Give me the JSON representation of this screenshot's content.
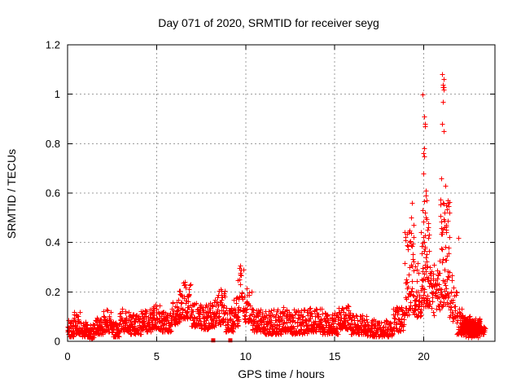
{
  "chart": {
    "title": "Day 071 of 2020, SRMTID for receiver seyg",
    "xlabel": "GPS time / hours",
    "ylabel": "SRMTID / TECUs"
  },
  "chart_data": {
    "type": "scatter",
    "title": "Day 071 of 2020, SRMTID for receiver seyg",
    "xlabel": "GPS time / hours",
    "ylabel": "SRMTID / TECUs",
    "xlim": [
      0,
      24
    ],
    "ylim": [
      0,
      1.2
    ],
    "xticks": [
      0,
      5,
      10,
      15,
      20
    ],
    "xtick_labels": [
      "0",
      "5",
      "10",
      "15",
      "20"
    ],
    "yticks": [
      0,
      0.2,
      0.4,
      0.6,
      0.8,
      1.0,
      1.2
    ],
    "ytick_labels": [
      "0",
      "0.2",
      "0.4",
      "0.6",
      "0.8",
      "1",
      "1.2"
    ],
    "grid": true,
    "grid_style": "dashed-gray",
    "legend": "none",
    "marker": "plus",
    "marker_color": "#ff0000",
    "grid_color": "#9e9e9e",
    "axis_color": "#000000",
    "seed": 42,
    "summary": "Dense noisy band 0.02-0.15 TECUs from 0-19h with bumps near 6.7h (~0.24), 8.5h (~0.22), spike near 9.7h (~0.30); large disturbance 19-21.5h peaking 1.0 at 20h and 1.08 at 21.1h; dense low cluster ~0.05 from 22-23.4h; data ends ~23.4h.",
    "band_segments": [
      [
        0.0,
        0.35,
        0.02,
        0.1,
        35
      ],
      [
        0.35,
        0.75,
        0.03,
        0.12,
        40
      ],
      [
        0.75,
        1.15,
        0.02,
        0.08,
        40
      ],
      [
        1.15,
        1.55,
        0.01,
        0.07,
        40
      ],
      [
        1.55,
        2.0,
        0.03,
        0.1,
        45
      ],
      [
        2.0,
        2.45,
        0.04,
        0.13,
        45
      ],
      [
        2.45,
        2.9,
        0.02,
        0.08,
        45
      ],
      [
        2.9,
        3.5,
        0.04,
        0.14,
        60
      ],
      [
        3.5,
        4.1,
        0.03,
        0.11,
        60
      ],
      [
        4.1,
        4.7,
        0.04,
        0.13,
        60
      ],
      [
        4.7,
        5.2,
        0.05,
        0.15,
        50
      ],
      [
        5.2,
        5.8,
        0.04,
        0.12,
        60
      ],
      [
        5.8,
        6.25,
        0.07,
        0.17,
        45
      ],
      [
        6.25,
        6.95,
        0.09,
        0.24,
        70
      ],
      [
        6.95,
        7.45,
        0.06,
        0.16,
        50
      ],
      [
        7.45,
        7.95,
        0.05,
        0.15,
        50
      ],
      [
        7.95,
        8.35,
        0.06,
        0.18,
        40
      ],
      [
        8.35,
        8.85,
        0.07,
        0.22,
        50
      ],
      [
        8.85,
        9.3,
        0.04,
        0.14,
        45
      ],
      [
        9.3,
        9.6,
        0.06,
        0.18,
        30
      ],
      [
        9.55,
        9.9,
        0.12,
        0.3,
        20
      ],
      [
        9.9,
        10.35,
        0.08,
        0.22,
        40
      ],
      [
        10.35,
        11.0,
        0.04,
        0.13,
        65
      ],
      [
        11.0,
        12.0,
        0.03,
        0.13,
        95
      ],
      [
        12.0,
        12.5,
        0.04,
        0.14,
        48
      ],
      [
        12.5,
        13.5,
        0.03,
        0.13,
        95
      ],
      [
        13.5,
        14.3,
        0.04,
        0.14,
        75
      ],
      [
        14.3,
        15.2,
        0.03,
        0.12,
        85
      ],
      [
        15.2,
        15.9,
        0.05,
        0.15,
        65
      ],
      [
        15.9,
        16.8,
        0.03,
        0.11,
        80
      ],
      [
        16.8,
        18.25,
        0.02,
        0.09,
        115
      ],
      [
        18.25,
        18.9,
        0.04,
        0.14,
        55
      ],
      [
        18.9,
        19.45,
        0.1,
        0.45,
        60
      ],
      [
        19.45,
        19.85,
        0.1,
        0.32,
        42
      ],
      [
        19.85,
        20.3,
        0.14,
        0.6,
        70
      ],
      [
        20.3,
        20.9,
        0.1,
        0.32,
        55,
        1
      ],
      [
        20.9,
        21.45,
        0.14,
        0.58,
        75
      ],
      [
        21.45,
        21.85,
        0.08,
        0.28,
        30
      ],
      [
        21.85,
        22.15,
        0.03,
        0.14,
        30
      ],
      [
        22.1,
        22.6,
        0.01,
        0.11,
        150,
        1
      ],
      [
        22.55,
        23.15,
        0.01,
        0.1,
        150,
        1
      ],
      [
        23.1,
        23.45,
        0.02,
        0.08,
        25,
        1
      ]
    ],
    "outlier_points": [
      [
        9.7,
        0.305
      ],
      [
        9.73,
        0.29
      ],
      [
        9.67,
        0.27
      ],
      [
        19.35,
        0.56
      ],
      [
        19.3,
        0.5
      ],
      [
        19.42,
        0.47
      ],
      [
        19.95,
        1.0
      ],
      [
        20.02,
        0.91
      ],
      [
        20.05,
        0.88
      ],
      [
        20.08,
        0.87
      ],
      [
        20.0,
        0.78
      ],
      [
        19.97,
        0.76
      ],
      [
        20.03,
        0.75
      ],
      [
        19.98,
        0.68
      ],
      [
        20.1,
        0.61
      ],
      [
        20.15,
        0.57
      ],
      [
        20.06,
        0.52
      ],
      [
        21.05,
        1.08
      ],
      [
        21.1,
        1.06
      ],
      [
        21.08,
        1.04
      ],
      [
        21.11,
        1.03
      ],
      [
        21.06,
        1.03
      ],
      [
        21.13,
        1.02
      ],
      [
        21.09,
        0.97
      ],
      [
        21.04,
        0.88
      ],
      [
        21.14,
        0.85
      ],
      [
        21.0,
        0.66
      ],
      [
        21.2,
        0.63
      ],
      [
        21.25,
        0.55
      ],
      [
        21.16,
        0.52
      ],
      [
        21.94,
        0.42
      ]
    ],
    "axis_gap_markers": [
      [
        8.18,
        0.004
      ],
      [
        9.14,
        0.004
      ]
    ],
    "max_point": [
      21.05,
      1.08
    ]
  }
}
